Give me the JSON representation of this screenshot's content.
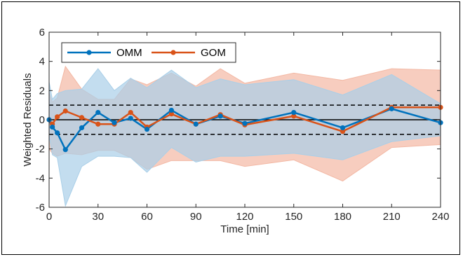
{
  "chart_data": {
    "type": "line",
    "xlabel": "Time [min]",
    "ylabel": "Weighted Residuals",
    "xlim": [
      0,
      240
    ],
    "ylim": [
      -6,
      6
    ],
    "xticks": [
      0,
      30,
      60,
      90,
      120,
      150,
      180,
      210,
      240
    ],
    "yticks": [
      -6,
      -4,
      -2,
      0,
      2,
      4,
      6
    ],
    "grid": false,
    "legend_placement": "top-left",
    "reference_lines": {
      "solid": [
        0
      ],
      "dashed": [
        1,
        -1
      ]
    },
    "series": [
      {
        "name": "OMM",
        "color": "#0072BD",
        "band_color": "#a9cfe8",
        "x": [
          0,
          2,
          5,
          10,
          20,
          30,
          40,
          50,
          60,
          75,
          90,
          105,
          120,
          150,
          180,
          210,
          240
        ],
        "y": [
          0.0,
          -0.5,
          -0.9,
          -2.05,
          -0.55,
          0.5,
          -0.2,
          0.1,
          -0.65,
          0.65,
          -0.3,
          0.25,
          -0.25,
          0.5,
          -0.55,
          0.75,
          -0.2
        ],
        "band_upper": [
          2.6,
          1.4,
          1.8,
          2.0,
          2.1,
          3.5,
          2.0,
          2.85,
          2.2,
          3.4,
          2.2,
          2.8,
          2.4,
          2.75,
          1.7,
          3.1,
          1.1
        ],
        "band_lower": [
          -1.1,
          -2.4,
          -2.6,
          -5.9,
          -3.2,
          -2.5,
          -2.5,
          -2.6,
          -3.6,
          -1.9,
          -2.9,
          -2.5,
          -2.5,
          -2.3,
          -2.75,
          -1.5,
          -1.1
        ]
      },
      {
        "name": "GOM",
        "color": "#D95319",
        "band_color": "#f3b8a4",
        "x": [
          0,
          2,
          5,
          10,
          20,
          30,
          40,
          50,
          60,
          75,
          90,
          105,
          120,
          150,
          180,
          210,
          240
        ],
        "y": [
          0.0,
          -0.3,
          0.2,
          0.6,
          0.15,
          -0.3,
          -0.3,
          0.5,
          -0.5,
          0.4,
          -0.3,
          0.35,
          -0.35,
          0.25,
          -0.8,
          0.85,
          0.85
        ],
        "band_upper": [
          1.9,
          1.2,
          1.5,
          3.65,
          2.1,
          1.4,
          1.4,
          2.8,
          2.4,
          3.2,
          2.3,
          3.5,
          2.5,
          3.2,
          2.7,
          3.5,
          3.4
        ],
        "band_lower": [
          -2.0,
          -2.3,
          -2.5,
          -2.3,
          -2.4,
          -2.1,
          -2.1,
          -2.6,
          -3.4,
          -2.8,
          -2.8,
          -2.8,
          -3.2,
          -2.75,
          -4.2,
          -1.9,
          -1.7
        ]
      }
    ]
  }
}
